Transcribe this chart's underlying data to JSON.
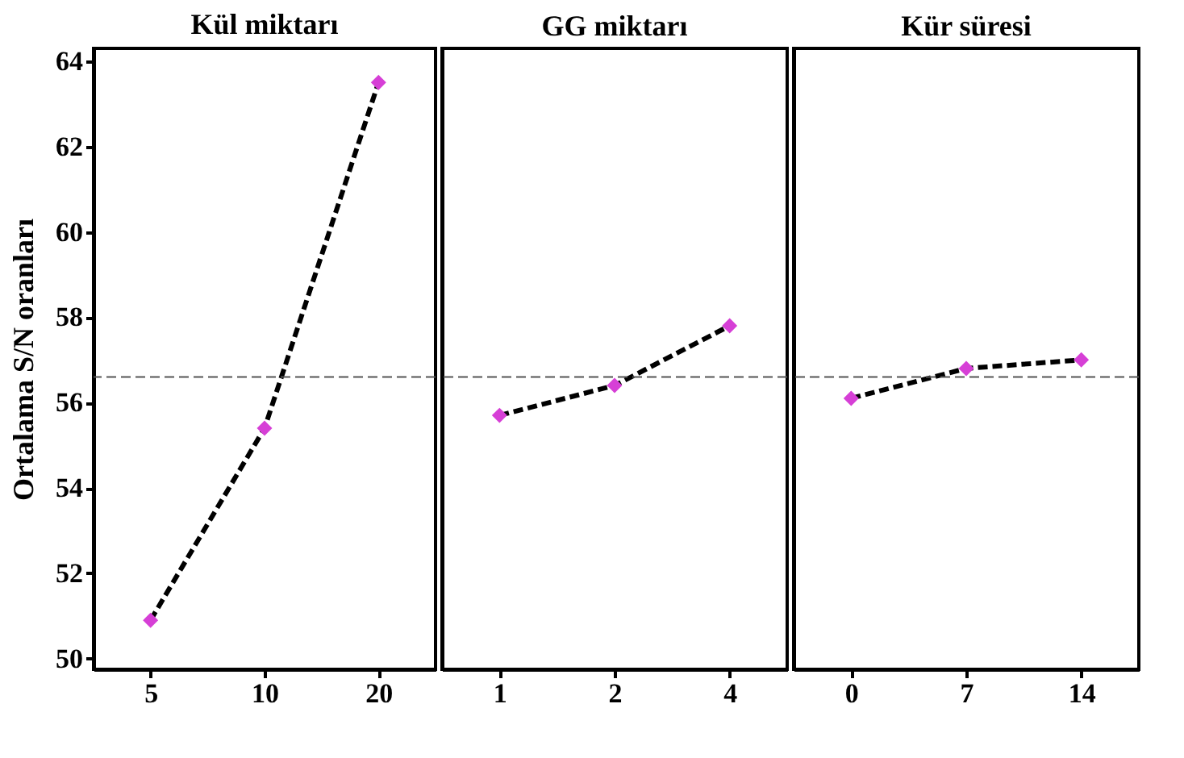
{
  "chart_data": [
    {
      "type": "line",
      "title": "Kül miktarı",
      "ylabel": "Ortalama S/N oranları",
      "categories": [
        "5",
        "10",
        "20"
      ],
      "ylim": [
        49.75,
        64.3
      ],
      "yticks": [
        50,
        52,
        54,
        56,
        58,
        60,
        62,
        64
      ],
      "grid": false,
      "series": [
        {
          "color": "#000000",
          "marker": "none",
          "line_style": "dashed",
          "values": [
            50.9,
            55.4,
            63.5
          ]
        },
        {
          "type": "scatter",
          "color": "#d63fd6",
          "marker": "diamond",
          "values": [
            50.9,
            55.4,
            63.5
          ]
        }
      ],
      "ref_lines": [
        {
          "axis": "y",
          "value": 56.6,
          "color": "#555555",
          "line_style": "dashed"
        }
      ]
    },
    {
      "type": "line",
      "title": "GG miktarı",
      "categories": [
        "1",
        "2",
        "4"
      ],
      "ylim": [
        49.75,
        64.3
      ],
      "yticks": [
        50,
        52,
        54,
        56,
        58,
        60,
        62,
        64
      ],
      "tick_labels": "x",
      "grid": false,
      "series": [
        {
          "color": "#000000",
          "marker": "none",
          "line_style": "dashed",
          "values": [
            55.7,
            56.4,
            57.8
          ]
        },
        {
          "type": "scatter",
          "color": "#d63fd6",
          "marker": "diamond",
          "values": [
            55.7,
            56.4,
            57.8
          ]
        }
      ],
      "ref_lines": [
        {
          "axis": "y",
          "value": 56.6,
          "color": "#555555",
          "line_style": "dashed"
        }
      ]
    },
    {
      "type": "line",
      "title": "Kür süresi",
      "categories": [
        "0",
        "7",
        "14"
      ],
      "ylim": [
        49.75,
        64.3
      ],
      "yticks": [
        50,
        52,
        54,
        56,
        58,
        60,
        62,
        64
      ],
      "tick_labels": "x",
      "grid": false,
      "series": [
        {
          "color": "#000000",
          "marker": "none",
          "line_style": "dashed",
          "values": [
            56.1,
            56.8,
            57.0
          ]
        },
        {
          "type": "scatter",
          "color": "#d63fd6",
          "marker": "diamond",
          "values": [
            56.1,
            56.8,
            57.0
          ]
        }
      ],
      "ref_lines": [
        {
          "axis": "y",
          "value": 56.6,
          "color": "#555555",
          "line_style": "dashed"
        }
      ]
    }
  ]
}
